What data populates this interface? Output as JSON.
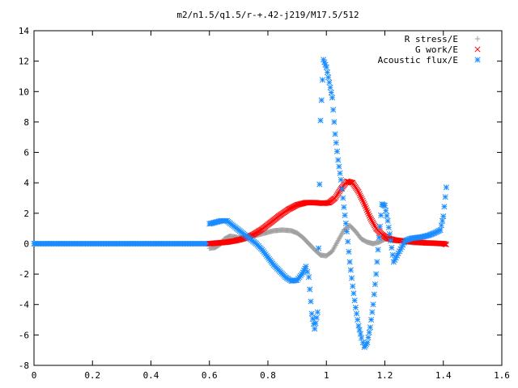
{
  "chart_data": {
    "type": "scatter",
    "title": "m2/n1.5/q1.5/r-+.42-j219/M17.5/512",
    "xlabel": "",
    "ylabel": "",
    "xlim": [
      0,
      1.6
    ],
    "ylim": [
      -8,
      14
    ],
    "x_ticks": [
      0,
      0.2,
      0.4,
      0.6,
      0.8,
      1,
      1.2,
      1.4,
      1.6
    ],
    "x_tick_labels": [
      "0",
      "0.2",
      "0.4",
      "0.6",
      "0.8",
      "1",
      "1.2",
      "1.4",
      "1.6"
    ],
    "y_ticks": [
      -8,
      -6,
      -4,
      -2,
      0,
      2,
      4,
      6,
      8,
      10,
      12,
      14
    ],
    "y_tick_labels": [
      "-8",
      "-6",
      "-4",
      "-2",
      "0",
      "2",
      "4",
      "6",
      "8",
      "10",
      "12",
      "14"
    ],
    "grid": false,
    "legend_position": "top-right",
    "series": [
      {
        "name": "R stress/E",
        "marker": "plus",
        "color": "#a0a0a0",
        "x": [
          0.6,
          0.62,
          0.64,
          0.65,
          0.67,
          0.7,
          0.73,
          0.76,
          0.79,
          0.82,
          0.85,
          0.88,
          0.9,
          0.92,
          0.94,
          0.96,
          0.98,
          1.0,
          1.02,
          1.04,
          1.06,
          1.08,
          1.1,
          1.12,
          1.14,
          1.16,
          1.18,
          1.2,
          1.22,
          1.24,
          1.26,
          1.28,
          1.3,
          1.33,
          1.36,
          1.39,
          1.41
        ],
        "y": [
          -0.3,
          -0.25,
          0.0,
          0.3,
          0.5,
          0.4,
          0.45,
          0.55,
          0.7,
          0.85,
          0.9,
          0.85,
          0.7,
          0.4,
          0.0,
          -0.4,
          -0.75,
          -0.8,
          -0.5,
          0.2,
          0.9,
          1.2,
          0.8,
          0.3,
          0.1,
          0.0,
          0.1,
          0.3,
          0.35,
          0.25,
          0.15,
          0.1,
          0.05,
          0.05,
          0.05,
          0.02,
          0.0
        ]
      },
      {
        "name": "G work/E",
        "marker": "cross",
        "color": "#ff0000",
        "x": [
          0.6,
          0.63,
          0.66,
          0.69,
          0.72,
          0.75,
          0.78,
          0.81,
          0.84,
          0.87,
          0.9,
          0.93,
          0.96,
          0.99,
          1.01,
          1.03,
          1.05,
          1.07,
          1.09,
          1.11,
          1.13,
          1.15,
          1.17,
          1.19,
          1.21,
          1.23,
          1.25,
          1.28,
          1.31,
          1.34,
          1.37,
          1.4,
          1.41
        ],
        "y": [
          0.0,
          0.05,
          0.1,
          0.2,
          0.35,
          0.6,
          0.95,
          1.4,
          1.85,
          2.25,
          2.55,
          2.7,
          2.7,
          2.65,
          2.7,
          3.0,
          3.6,
          4.1,
          4.0,
          3.4,
          2.6,
          1.7,
          1.0,
          0.6,
          0.35,
          0.25,
          0.2,
          0.15,
          0.1,
          0.05,
          0.03,
          0.0,
          -0.05
        ]
      },
      {
        "name": "Acoustic flux/E",
        "marker": "star",
        "color": "#1a8cff",
        "x": [
          0.6,
          0.62,
          0.64,
          0.66,
          0.68,
          0.7,
          0.72,
          0.74,
          0.76,
          0.78,
          0.8,
          0.82,
          0.84,
          0.86,
          0.88,
          0.9,
          0.92,
          0.93,
          0.94,
          0.95,
          0.96,
          0.97,
          0.98,
          0.99,
          1.0,
          1.01,
          1.02,
          1.03,
          1.04,
          1.05,
          1.06,
          1.07,
          1.08,
          1.09,
          1.1,
          1.11,
          1.12,
          1.13,
          1.14,
          1.15,
          1.16,
          1.17,
          1.18,
          1.19,
          1.2,
          1.21,
          1.22,
          1.23,
          1.25,
          1.27,
          1.29,
          1.31,
          1.33,
          1.35,
          1.37,
          1.39,
          1.4,
          1.41
        ],
        "y": [
          1.3,
          1.4,
          1.5,
          1.5,
          1.2,
          0.9,
          0.6,
          0.3,
          0.0,
          -0.4,
          -0.9,
          -1.4,
          -1.8,
          -2.2,
          -2.45,
          -2.4,
          -1.9,
          -1.5,
          -2.2,
          -4.6,
          -5.6,
          -4.5,
          8.1,
          12.1,
          11.6,
          10.6,
          9.6,
          7.2,
          5.5,
          4.2,
          2.4,
          0.8,
          -1.2,
          -2.8,
          -4.2,
          -5.4,
          -6.2,
          -6.8,
          -6.5,
          -5.5,
          -4.0,
          -2.0,
          0.4,
          2.6,
          2.5,
          1.5,
          0.2,
          -1.2,
          -0.5,
          0.2,
          0.35,
          0.4,
          0.45,
          0.55,
          0.7,
          0.9,
          1.8,
          3.7
        ]
      }
    ],
    "flat_segment": {
      "series": "Acoustic flux/E",
      "x_range": [
        0,
        0.6
      ],
      "y": 0
    }
  }
}
